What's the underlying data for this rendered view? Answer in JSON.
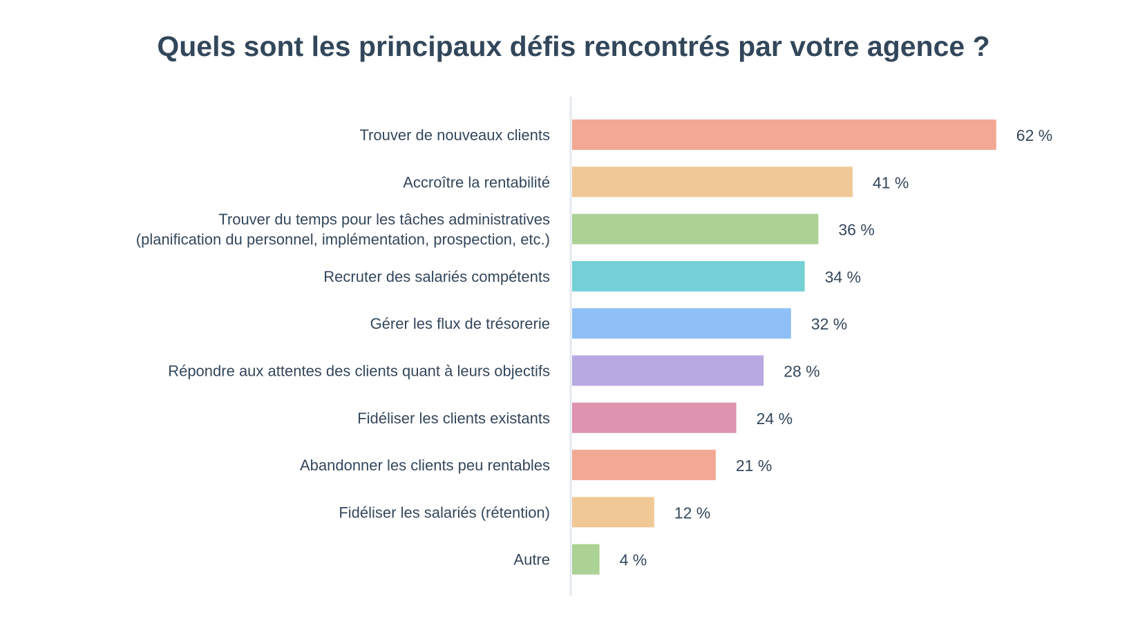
{
  "chart_data": {
    "type": "bar",
    "orientation": "horizontal",
    "title": "Quels sont les principaux défis rencontrés par votre agence ?",
    "xlabel": "",
    "ylabel": "",
    "xlim": [
      0,
      100
    ],
    "grid": false,
    "value_suffix": " %",
    "categories": [
      [
        "Trouver de nouveaux clients"
      ],
      [
        "Accroître la rentabilité"
      ],
      [
        "Trouver du temps pour les tâches administratives",
        "(planification du personnel, implémentation, prospection, etc.)"
      ],
      [
        "Recruter des salariés compétents"
      ],
      [
        "Gérer les flux de trésorerie"
      ],
      [
        "Répondre aux attentes des clients quant à leurs objectifs"
      ],
      [
        "Fidéliser les clients existants"
      ],
      [
        "Abandonner les clients peu rentables"
      ],
      [
        "Fidéliser les salariés (rétention)"
      ],
      [
        "Autre"
      ]
    ],
    "values": [
      62,
      41,
      36,
      34,
      32,
      28,
      24,
      21,
      12,
      4
    ],
    "colors": [
      "#f2a893",
      "#f0c896",
      "#acd194",
      "#73d0d6",
      "#8ebff7",
      "#b8a9e3",
      "#de94ae",
      "#f2a893",
      "#f0c896",
      "#acd194"
    ],
    "axis_color": "#e3e8ef"
  }
}
